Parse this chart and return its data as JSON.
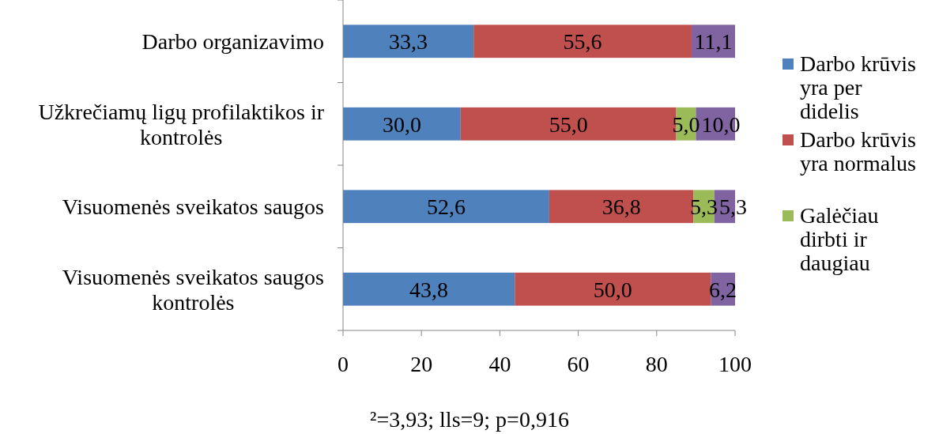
{
  "chart_data": {
    "type": "bar",
    "orientation": "horizontal",
    "stacked": true,
    "categories": [
      "Darbo organizavimo",
      "Užkrečiamų ligų profilaktikos ir kontrolės",
      "Visuomenės sveikatos saugos",
      "Visuomenės sveikatos saugos kontrolės"
    ],
    "series": [
      {
        "name": "Darbo krūvis yra per didelis",
        "color": "#4f81bd",
        "values": [
          33.3,
          30.0,
          52.6,
          43.8
        ],
        "value_labels": [
          "33,3",
          "30,0",
          "52,6",
          "43,8"
        ]
      },
      {
        "name": "Darbo krūvis yra normalus",
        "color": "#c0504d",
        "values": [
          55.6,
          55.0,
          36.8,
          50.0
        ],
        "value_labels": [
          "55,6",
          "55,0",
          "36,8",
          "50,0"
        ]
      },
      {
        "name": "Galėčiau dirbti ir daugiau",
        "color": "#9bbb59",
        "values": [
          null,
          5.0,
          5.3,
          null
        ],
        "value_labels": [
          null,
          "5,0",
          "5,3",
          null
        ]
      },
      {
        "color": "#8064a2",
        "values": [
          11.1,
          10.0,
          5.3,
          6.2
        ],
        "value_labels": [
          "11,1",
          "10,0",
          "5,3",
          "6,2"
        ]
      }
    ],
    "xlim": [
      0,
      100
    ],
    "xticks": [
      0,
      20,
      40,
      60,
      80,
      100
    ],
    "legend": "right",
    "annotations": [
      "²=3,93; lls=9; p=0,916"
    ]
  }
}
